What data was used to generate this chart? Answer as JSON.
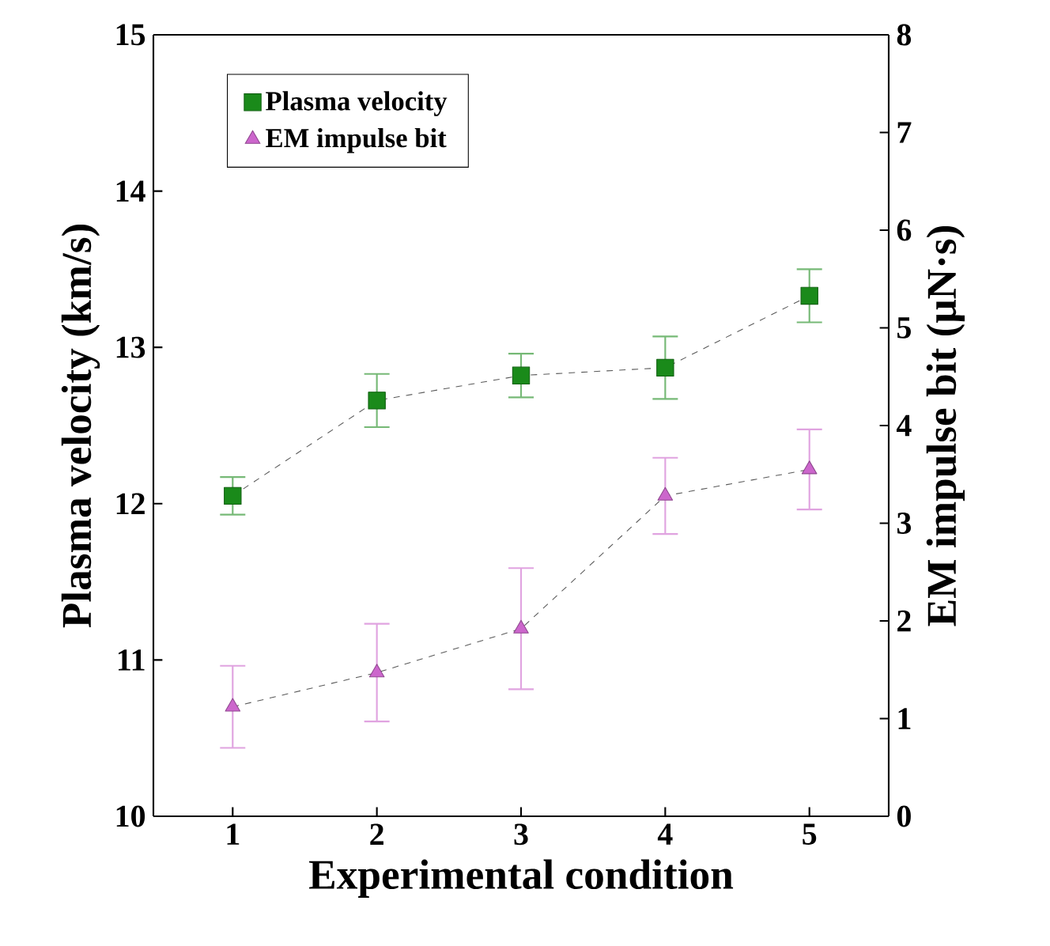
{
  "chart_data": {
    "type": "line",
    "xlabel": "Experimental condition",
    "ylabel": "Plasma velocity (km/s)",
    "y2label": "EM impulse bit (μN·s)",
    "categories": [
      "1",
      "2",
      "3",
      "4",
      "5"
    ],
    "series": [
      {
        "name": "Plasma velocity",
        "color": "#1a8a1a",
        "marker": "square",
        "values": [
          12.05,
          12.66,
          12.82,
          12.87,
          13.33
        ],
        "errors": [
          0.12,
          0.17,
          0.14,
          0.2,
          0.17
        ]
      },
      {
        "name": "EM impulse bit",
        "color": "#cc66cc",
        "marker": "triangle",
        "axis": "y2",
        "values": [
          1.12,
          1.47,
          1.92,
          3.28,
          3.55
        ],
        "errors": [
          0.42,
          0.5,
          0.62,
          0.39,
          0.41
        ]
      }
    ],
    "ylim": [
      10,
      15
    ],
    "yticks": [
      10,
      11,
      12,
      13,
      14,
      15
    ],
    "y2lim": [
      0,
      8
    ],
    "y2ticks": [
      0,
      1,
      2,
      3,
      4,
      5,
      6,
      7,
      8
    ],
    "line_style": "dashed",
    "legend": "top left",
    "grid": false
  }
}
